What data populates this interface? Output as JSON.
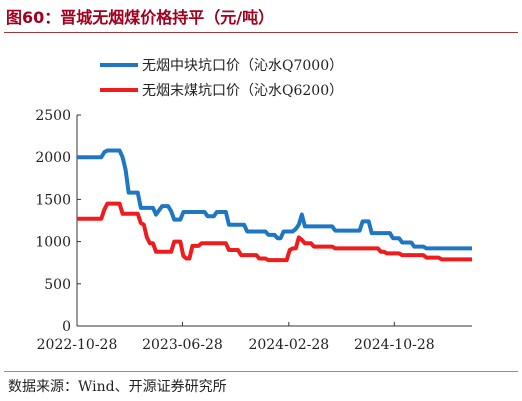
{
  "figure": {
    "title": "图60：晋城无烟煤价格持平（元/吨）",
    "source": "数据来源：Wind、开源证券研究所"
  },
  "chart_data": {
    "type": "line",
    "title": "",
    "xlabel": "",
    "ylabel": "",
    "x_start": "2022-10-28",
    "x_end": "2025-04-25",
    "x_ticks": [
      "2022-10-28",
      "2023-06-28",
      "2024-02-28",
      "2024-10-28"
    ],
    "ylim": [
      0,
      2500
    ],
    "y_ticks": [
      0,
      500,
      1000,
      1500,
      2000,
      2500
    ],
    "grid": false,
    "legend_position": "top-center",
    "series": [
      {
        "name": "无烟中块坑口价（沁水Q7000）",
        "color": "#1f77c4",
        "points": [
          [
            "2022-10-28",
            2000
          ],
          [
            "2022-12-23",
            2000
          ],
          [
            "2022-12-30",
            2060
          ],
          [
            "2023-01-06",
            2080
          ],
          [
            "2023-02-03",
            2080
          ],
          [
            "2023-02-10",
            2000
          ],
          [
            "2023-02-17",
            1850
          ],
          [
            "2023-02-24",
            1580
          ],
          [
            "2023-03-17",
            1580
          ],
          [
            "2023-03-24",
            1400
          ],
          [
            "2023-04-21",
            1400
          ],
          [
            "2023-04-28",
            1320
          ],
          [
            "2023-05-05",
            1370
          ],
          [
            "2023-05-12",
            1420
          ],
          [
            "2023-05-26",
            1420
          ],
          [
            "2023-06-02",
            1360
          ],
          [
            "2023-06-09",
            1260
          ],
          [
            "2023-06-23",
            1260
          ],
          [
            "2023-06-30",
            1350
          ],
          [
            "2023-08-18",
            1350
          ],
          [
            "2023-08-25",
            1300
          ],
          [
            "2023-09-08",
            1300
          ],
          [
            "2023-09-15",
            1350
          ],
          [
            "2023-10-06",
            1350
          ],
          [
            "2023-10-13",
            1200
          ],
          [
            "2023-11-17",
            1200
          ],
          [
            "2023-11-24",
            1120
          ],
          [
            "2024-01-05",
            1120
          ],
          [
            "2024-01-12",
            1080
          ],
          [
            "2024-01-26",
            1080
          ],
          [
            "2024-02-02",
            1040
          ],
          [
            "2024-02-09",
            1040
          ],
          [
            "2024-02-16",
            1120
          ],
          [
            "2024-03-08",
            1120
          ],
          [
            "2024-03-15",
            1150
          ],
          [
            "2024-03-22",
            1200
          ],
          [
            "2024-03-29",
            1320
          ],
          [
            "2024-04-05",
            1180
          ],
          [
            "2024-06-07",
            1180
          ],
          [
            "2024-06-14",
            1130
          ],
          [
            "2024-08-09",
            1130
          ],
          [
            "2024-08-16",
            1240
          ],
          [
            "2024-08-30",
            1240
          ],
          [
            "2024-09-06",
            1100
          ],
          [
            "2024-10-18",
            1100
          ],
          [
            "2024-10-25",
            1040
          ],
          [
            "2024-11-08",
            1040
          ],
          [
            "2024-11-15",
            990
          ],
          [
            "2024-12-06",
            990
          ],
          [
            "2024-12-13",
            940
          ],
          [
            "2025-01-03",
            940
          ],
          [
            "2025-01-10",
            920
          ],
          [
            "2025-04-25",
            920
          ]
        ]
      },
      {
        "name": "无烟末煤坑口价（沁水Q6200）",
        "color": "#ee1c1c",
        "points": [
          [
            "2022-10-28",
            1270
          ],
          [
            "2022-12-23",
            1270
          ],
          [
            "2022-12-30",
            1380
          ],
          [
            "2023-01-06",
            1450
          ],
          [
            "2023-02-03",
            1450
          ],
          [
            "2023-02-10",
            1330
          ],
          [
            "2023-03-17",
            1330
          ],
          [
            "2023-03-24",
            1220
          ],
          [
            "2023-03-31",
            1200
          ],
          [
            "2023-04-07",
            1050
          ],
          [
            "2023-04-14",
            980
          ],
          [
            "2023-04-21",
            980
          ],
          [
            "2023-04-28",
            880
          ],
          [
            "2023-06-02",
            880
          ],
          [
            "2023-06-09",
            1000
          ],
          [
            "2023-06-23",
            1000
          ],
          [
            "2023-06-30",
            830
          ],
          [
            "2023-07-07",
            800
          ],
          [
            "2023-07-14",
            800
          ],
          [
            "2023-07-21",
            950
          ],
          [
            "2023-08-04",
            950
          ],
          [
            "2023-08-11",
            980
          ],
          [
            "2023-10-06",
            980
          ],
          [
            "2023-10-13",
            900
          ],
          [
            "2023-11-03",
            900
          ],
          [
            "2023-11-10",
            840
          ],
          [
            "2023-12-15",
            840
          ],
          [
            "2023-12-22",
            800
          ],
          [
            "2024-01-05",
            800
          ],
          [
            "2024-01-12",
            780
          ],
          [
            "2024-02-23",
            780
          ],
          [
            "2024-03-01",
            900
          ],
          [
            "2024-03-08",
            920
          ],
          [
            "2024-03-15",
            920
          ],
          [
            "2024-03-22",
            1050
          ],
          [
            "2024-03-29",
            1020
          ],
          [
            "2024-04-05",
            980
          ],
          [
            "2024-04-19",
            980
          ],
          [
            "2024-04-26",
            940
          ],
          [
            "2024-06-07",
            940
          ],
          [
            "2024-06-14",
            920
          ],
          [
            "2024-09-20",
            920
          ],
          [
            "2024-09-27",
            880
          ],
          [
            "2024-10-04",
            880
          ],
          [
            "2024-10-11",
            860
          ],
          [
            "2024-11-08",
            860
          ],
          [
            "2024-11-15",
            840
          ],
          [
            "2025-01-03",
            840
          ],
          [
            "2025-01-10",
            810
          ],
          [
            "2025-02-07",
            810
          ],
          [
            "2025-02-14",
            790
          ],
          [
            "2025-04-25",
            790
          ]
        ]
      }
    ]
  }
}
